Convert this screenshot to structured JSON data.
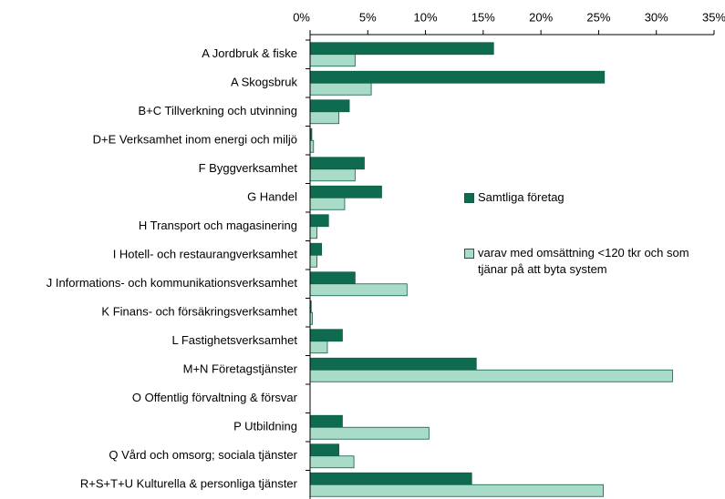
{
  "chart_data": {
    "type": "barh",
    "categories": [
      "A Jordbruk & fiske",
      "A Skogsbruk",
      "B+C Tillverkning och utvinning",
      "D+E Verksamhet inom energi och miljö",
      "F Byggverksamhet",
      "G Handel",
      "H Transport och magasinering",
      "I Hotell- och restaurangverksamhet",
      "J Informations- och kommunikationsverksamhet",
      "K Finans- och försäkringsverksamhet",
      "L Fastighetsverksamhet",
      "M+N Företagstjänster",
      "O Offentlig förvaltning & försvar",
      "P Utbildning",
      "Q Vård och omsorg; sociala tjänster",
      "R+S+T+U Kulturella & personliga tjänster"
    ],
    "series": [
      {
        "name": "Samtliga företag",
        "color": "#0e6b50",
        "values": [
          15.9,
          25.5,
          3.4,
          0.15,
          4.7,
          6.2,
          1.6,
          1.0,
          3.9,
          0.1,
          2.8,
          14.4,
          0,
          2.8,
          2.5,
          14.0
        ]
      },
      {
        "name": "varav med omsättning <120 tkr och som tjänar på att byta system",
        "color": "#a8dcc8",
        "values": [
          3.9,
          5.3,
          2.5,
          0.3,
          3.9,
          3.0,
          0.6,
          0.6,
          8.4,
          0.2,
          1.5,
          31.4,
          0,
          10.3,
          3.8,
          25.4
        ]
      }
    ],
    "xlim": [
      0,
      35
    ],
    "xticks": [
      {
        "value": 0,
        "label": "0%"
      },
      {
        "value": 5,
        "label": "5%"
      },
      {
        "value": 10,
        "label": "10%"
      },
      {
        "value": 15,
        "label": "15%"
      },
      {
        "value": 20,
        "label": "20%"
      },
      {
        "value": 25,
        "label": "25%"
      },
      {
        "value": 30,
        "label": "30%"
      },
      {
        "value": 35,
        "label": "35%"
      }
    ]
  }
}
